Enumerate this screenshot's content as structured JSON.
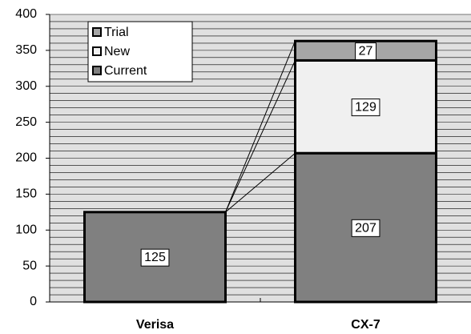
{
  "chart_data": {
    "type": "stacked_bar",
    "categories": [
      "Verisa",
      "CX-7"
    ],
    "series": [
      {
        "name": "Current",
        "color": "#808080",
        "values": [
          125,
          207
        ]
      },
      {
        "name": "New",
        "color": "#f0f0f0",
        "values": [
          null,
          129
        ]
      },
      {
        "name": "Trial",
        "color": "#a6a6a6",
        "values": [
          null,
          27
        ]
      }
    ],
    "legend_order": [
      "Trial",
      "New",
      "Current"
    ],
    "ylim": [
      0,
      400
    ],
    "yticks": [
      0,
      50,
      100,
      150,
      200,
      250,
      300,
      350,
      400
    ],
    "ygrid": [
      10,
      20,
      30,
      40,
      50,
      60,
      70,
      80,
      90,
      100,
      110,
      120,
      130,
      140,
      150,
      160,
      170,
      180,
      190,
      200,
      210,
      220,
      230,
      240,
      250,
      260,
      270,
      280,
      290,
      300,
      310,
      320,
      330,
      340,
      350,
      360,
      370,
      380,
      390,
      400
    ],
    "grid": true,
    "legend": "upper left"
  }
}
